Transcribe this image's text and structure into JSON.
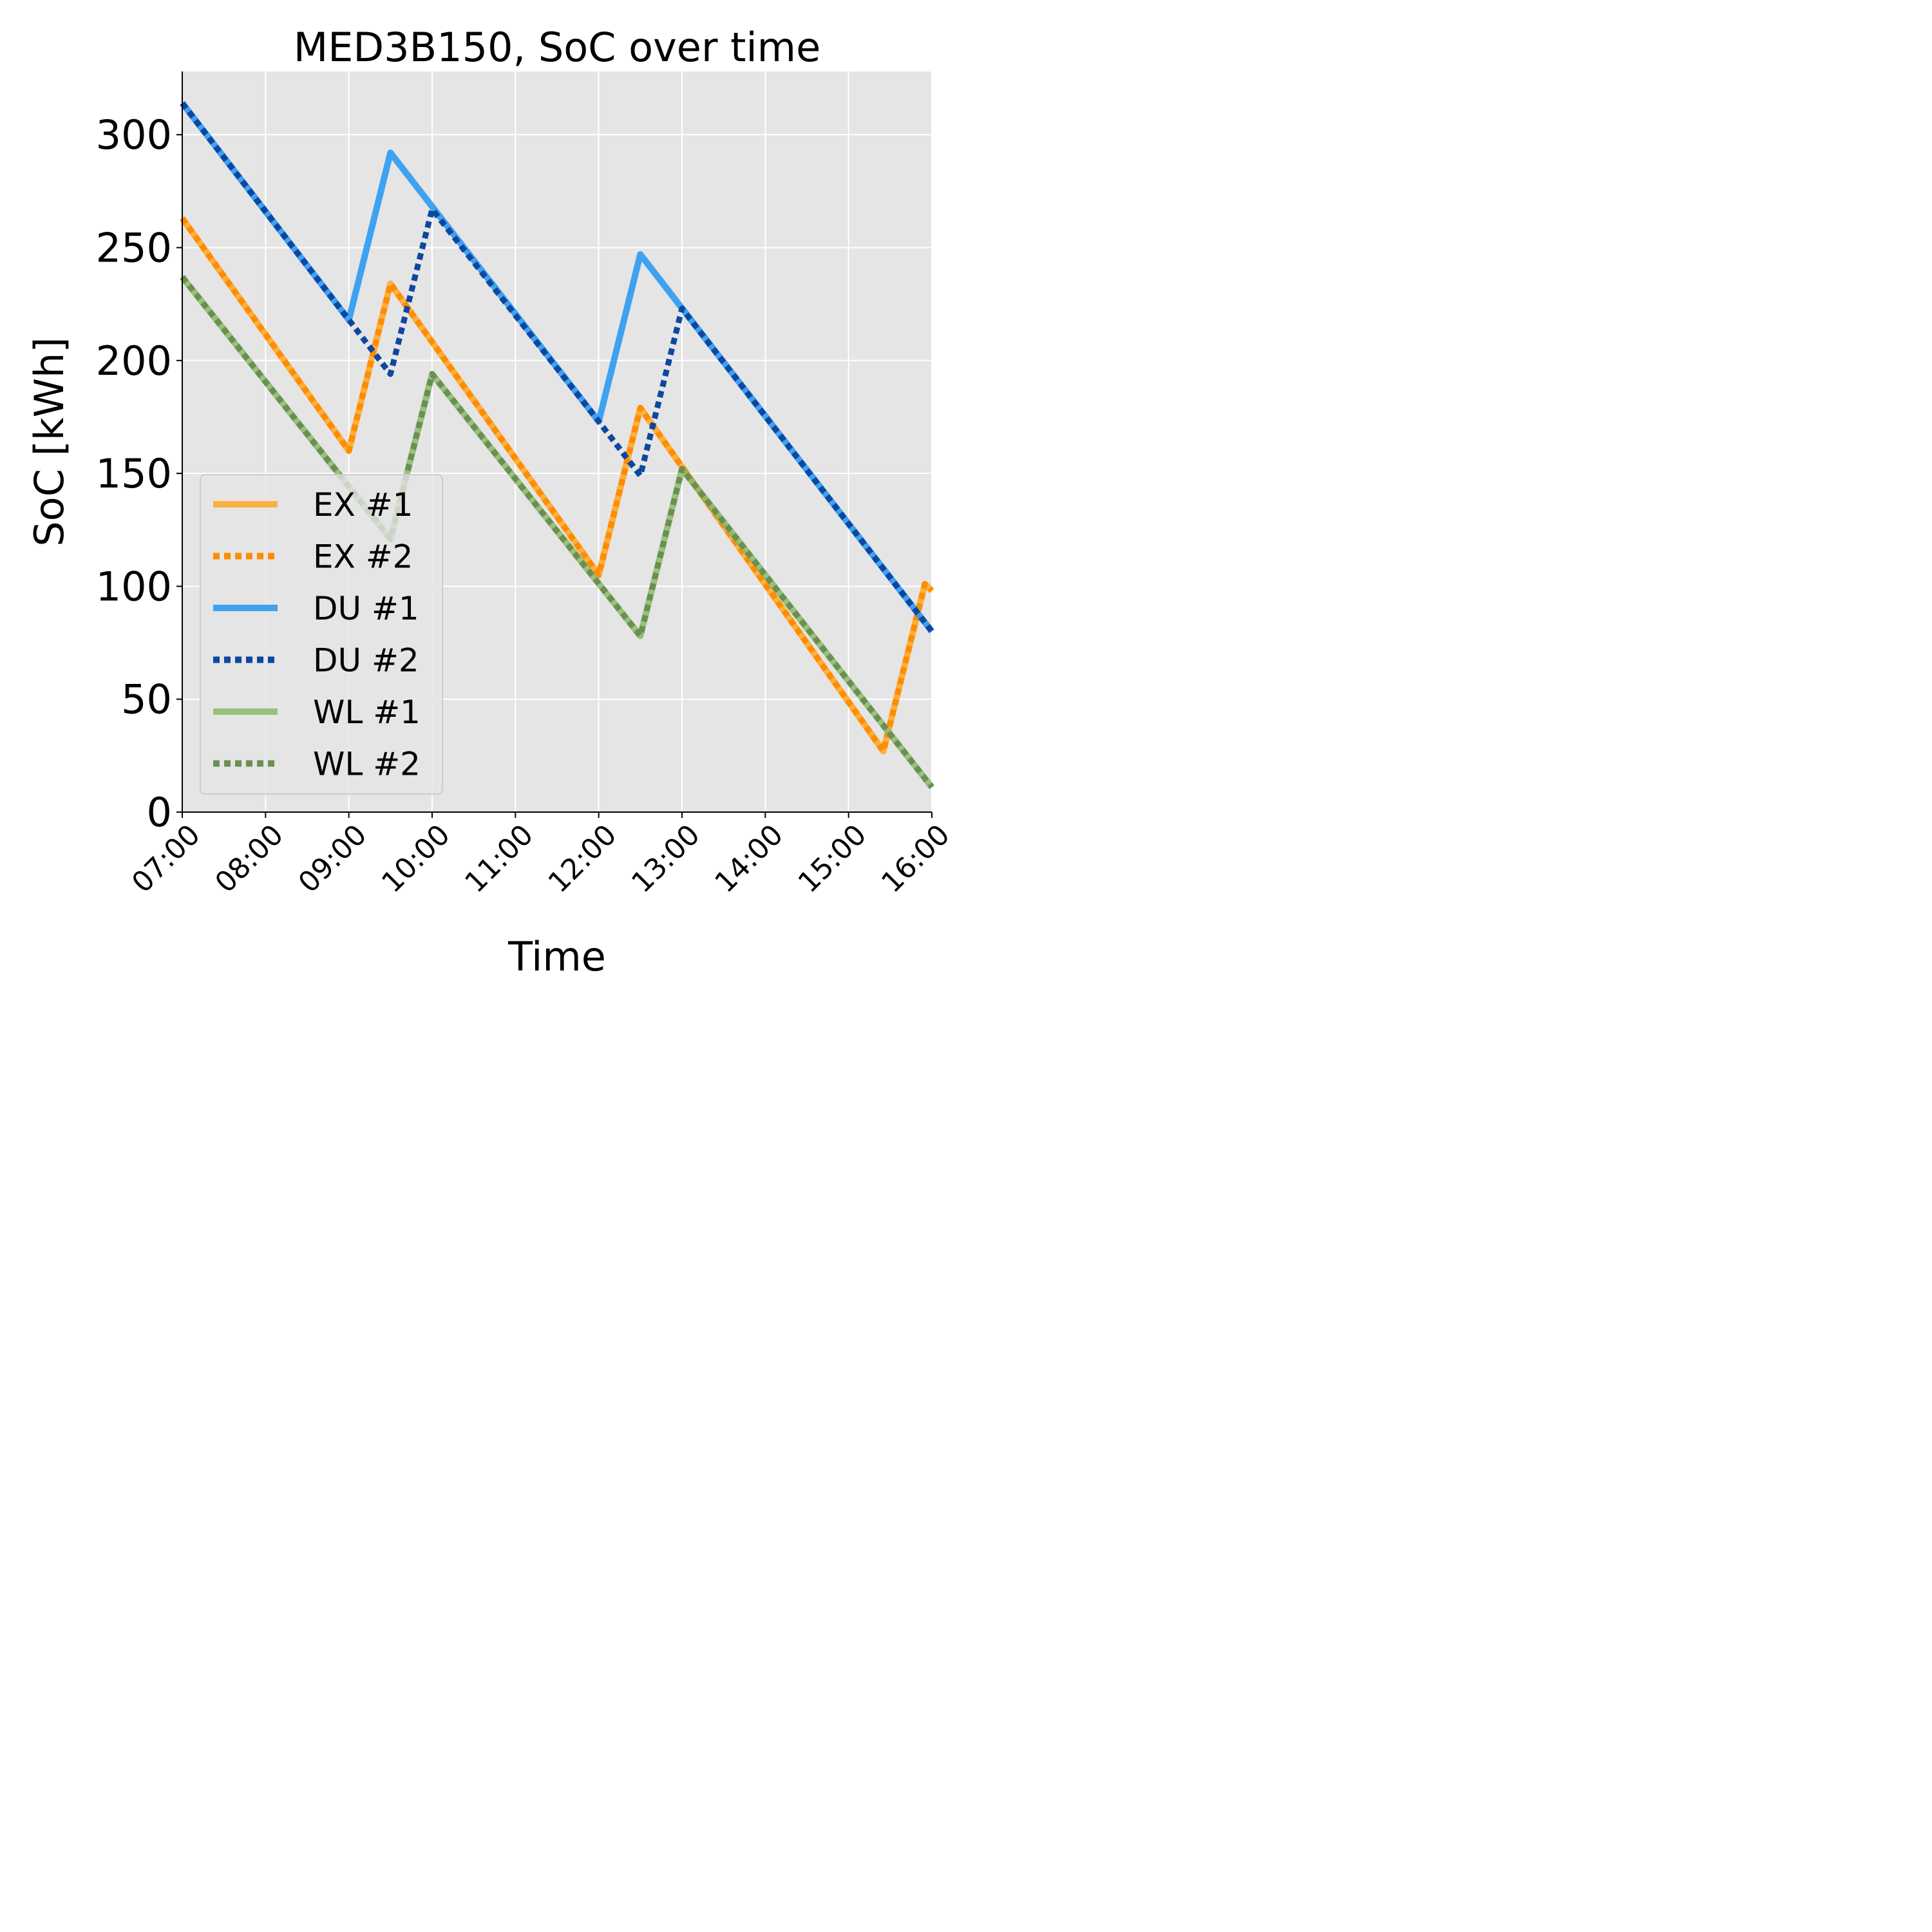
{
  "chart_data": {
    "type": "line",
    "title": "MED3B150, SoC over time",
    "xlabel": "Time",
    "ylabel": "SoC [kWh]",
    "x_ticks": [
      "07:00",
      "08:00",
      "09:00",
      "10:00",
      "11:00",
      "12:00",
      "13:00",
      "14:00",
      "15:00",
      "16:00"
    ],
    "y_ticks": [
      0,
      50,
      100,
      150,
      200,
      250,
      300
    ],
    "xlim": [
      "07:00",
      "16:00"
    ],
    "ylim": [
      0,
      328
    ],
    "grid": true,
    "legend_position": "lower-left",
    "background_color": "#e5e5e5",
    "series": [
      {
        "name": "EX #1",
        "color": "#ffa726",
        "style": "solid",
        "points": [
          [
            "07:00",
            263
          ],
          [
            "09:00",
            160
          ],
          [
            "09:30",
            234
          ],
          [
            "12:00",
            105
          ],
          [
            "12:30",
            179
          ],
          [
            "15:25",
            27
          ],
          [
            "15:55",
            101
          ],
          [
            "16:00",
            98
          ]
        ]
      },
      {
        "name": "EX #2",
        "color": "#ff8c00",
        "style": "dotted",
        "points": [
          [
            "07:00",
            263
          ],
          [
            "09:00",
            160
          ],
          [
            "09:30",
            234
          ],
          [
            "12:00",
            105
          ],
          [
            "12:30",
            179
          ],
          [
            "15:25",
            27
          ],
          [
            "15:55",
            101
          ],
          [
            "16:00",
            98
          ]
        ]
      },
      {
        "name": "DU #1",
        "color": "#2196f3",
        "style": "solid",
        "points": [
          [
            "07:00",
            314
          ],
          [
            "09:00",
            218
          ],
          [
            "09:30",
            292
          ],
          [
            "12:00",
            173
          ],
          [
            "12:30",
            247
          ],
          [
            "16:00",
            80
          ]
        ]
      },
      {
        "name": "DU #2",
        "color": "#0d47a1",
        "style": "dotted",
        "points": [
          [
            "07:00",
            314
          ],
          [
            "09:00",
            218
          ],
          [
            "09:30",
            194
          ],
          [
            "10:00",
            267
          ],
          [
            "12:00",
            173
          ],
          [
            "12:30",
            149
          ],
          [
            "13:00",
            223
          ],
          [
            "16:00",
            80
          ]
        ]
      },
      {
        "name": "WL #1",
        "color": "#8bbb6a",
        "style": "solid",
        "points": [
          [
            "07:00",
            237
          ],
          [
            "09:30",
            121
          ],
          [
            "10:00",
            194
          ],
          [
            "12:30",
            78
          ],
          [
            "13:00",
            152
          ],
          [
            "16:00",
            11
          ]
        ]
      },
      {
        "name": "WL #2",
        "color": "#6b8f52",
        "style": "dotted",
        "points": [
          [
            "07:00",
            237
          ],
          [
            "09:30",
            121
          ],
          [
            "10:00",
            194
          ],
          [
            "12:30",
            78
          ],
          [
            "13:00",
            152
          ],
          [
            "16:00",
            11
          ]
        ]
      }
    ]
  }
}
